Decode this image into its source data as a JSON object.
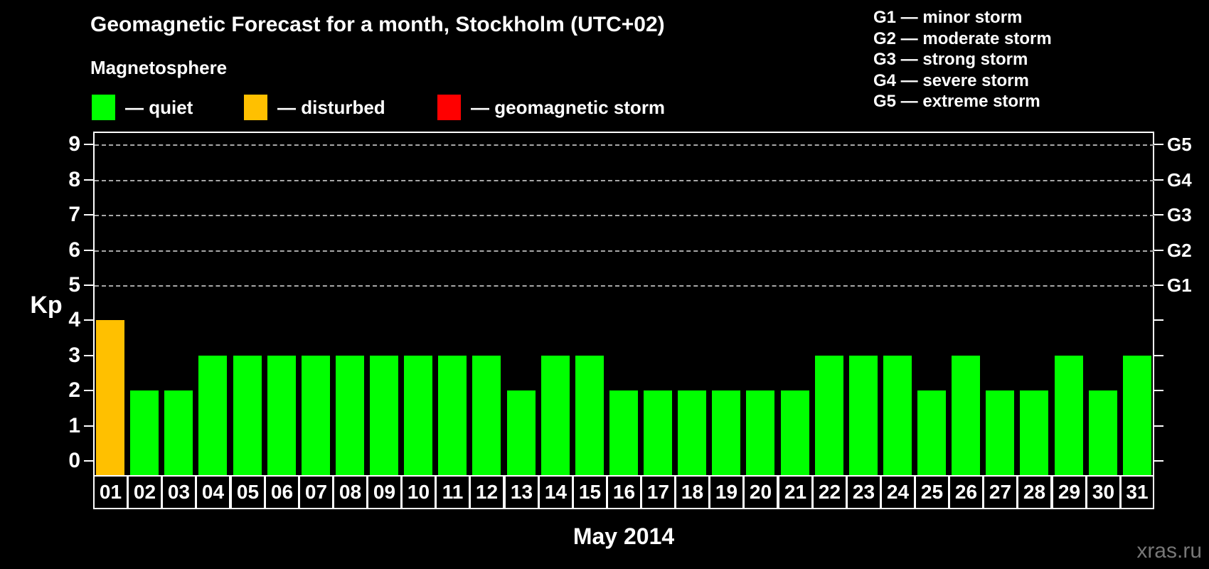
{
  "title": "Geomagnetic Forecast for a month, Stockholm (UTC+02)",
  "watermark": "xras.ru",
  "legend": {
    "heading": "Magnetosphere",
    "items": [
      {
        "name": "quiet",
        "label": "— quiet",
        "color": "#00FF00",
        "x": 129
      },
      {
        "name": "disturbed",
        "label": "— disturbed",
        "color": "#FFC000",
        "x": 343
      },
      {
        "name": "storm",
        "label": "— geomagnetic storm",
        "color": "#FF0000",
        "x": 615
      }
    ]
  },
  "g_scale_legend": [
    "G1 — minor storm",
    "G2 — moderate storm",
    "G3 — strong storm",
    "G4 — severe storm",
    "G5 — extreme storm"
  ],
  "chart_data": {
    "type": "bar",
    "title": "Geomagnetic Forecast for a month, Stockholm (UTC+02)",
    "xlabel": "May 2014",
    "ylabel": "Kp",
    "ylim": [
      0,
      9
    ],
    "grid": "dashed horizontal lines at Kp 5–9 only",
    "legend_position": "top",
    "categories": [
      "01",
      "02",
      "03",
      "04",
      "05",
      "06",
      "07",
      "08",
      "09",
      "10",
      "11",
      "12",
      "13",
      "14",
      "15",
      "16",
      "17",
      "18",
      "19",
      "20",
      "21",
      "22",
      "23",
      "24",
      "25",
      "26",
      "27",
      "28",
      "29",
      "30",
      "31"
    ],
    "values": [
      4,
      2,
      2,
      3,
      3,
      3,
      3,
      3,
      3,
      3,
      3,
      3,
      2,
      3,
      3,
      2,
      2,
      2,
      2,
      2,
      2,
      3,
      3,
      3,
      2,
      3,
      2,
      2,
      3,
      2,
      3
    ],
    "y_ticks": [
      0,
      1,
      2,
      3,
      4,
      5,
      6,
      7,
      8,
      9
    ],
    "right_axis": [
      {
        "kp": 5,
        "label": "G1"
      },
      {
        "kp": 6,
        "label": "G2"
      },
      {
        "kp": 7,
        "label": "G3"
      },
      {
        "kp": 8,
        "label": "G4"
      },
      {
        "kp": 9,
        "label": "G5"
      }
    ],
    "colors": {
      "quiet": "#00FF00",
      "disturbed": "#FFC000",
      "storm": "#FF0000"
    },
    "thresholds": {
      "disturbed_from": 4,
      "storm_from": 5
    }
  }
}
